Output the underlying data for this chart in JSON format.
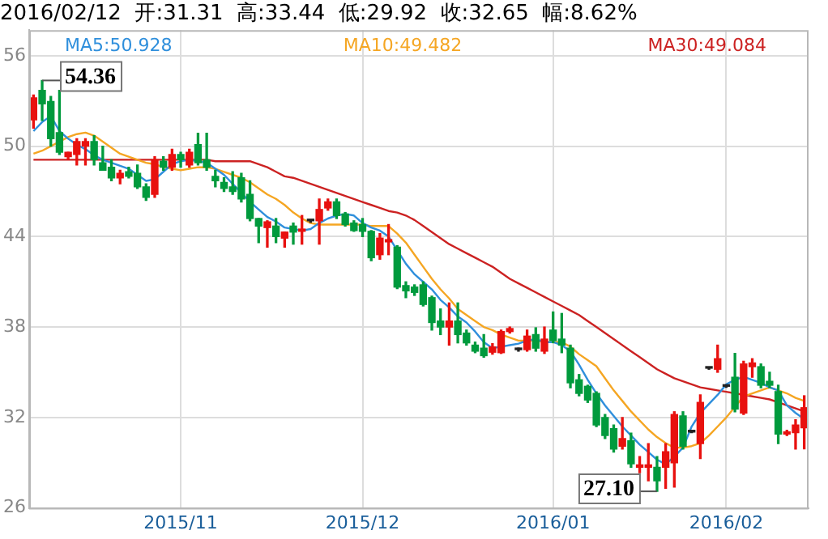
{
  "chart_data": {
    "type": "candlestick",
    "title": "2016/02/12  开:31.31  高:33.44  低:29.92  收:32.65  幅:8.62%",
    "categories": [
      null,
      null,
      null,
      null,
      null,
      null,
      null,
      null,
      null,
      null,
      null,
      null,
      null,
      null,
      null,
      null,
      null,
      "2015/11",
      null,
      null,
      null,
      null,
      null,
      null,
      null,
      null,
      null,
      null,
      null,
      null,
      null,
      null,
      null,
      null,
      null,
      null,
      null,
      null,
      "2015/12",
      null,
      null,
      null,
      null,
      null,
      null,
      null,
      null,
      null,
      null,
      null,
      null,
      null,
      null,
      null,
      null,
      null,
      null,
      null,
      null,
      null,
      "2016/01",
      null,
      null,
      null,
      null,
      null,
      null,
      null,
      null,
      null,
      null,
      null,
      null,
      null,
      null,
      null,
      null,
      null,
      null,
      null,
      "2016/02",
      null,
      null,
      null,
      null,
      null,
      null,
      null,
      null,
      null
    ],
    "ohlc": [
      [
        51.74,
        53.4,
        51.2,
        53.2
      ],
      [
        53.7,
        54.36,
        51.7,
        52.8
      ],
      [
        52.97,
        53.3,
        50.0,
        50.5
      ],
      [
        50.9,
        53.7,
        49.45,
        49.6
      ],
      [
        49.3,
        49.6,
        49.1,
        49.6
      ],
      [
        49.45,
        50.5,
        48.75,
        50.3
      ],
      [
        50.0,
        50.5,
        48.75,
        50.3
      ],
      [
        50.3,
        50.7,
        48.75,
        49.1
      ],
      [
        48.9,
        50.0,
        48.4,
        48.4
      ],
      [
        48.6,
        49.1,
        47.7,
        47.9
      ],
      [
        47.9,
        48.4,
        47.5,
        48.2
      ],
      [
        48.3,
        48.6,
        47.9,
        48.0
      ],
      [
        48.2,
        48.75,
        47.2,
        47.3
      ],
      [
        47.3,
        47.5,
        46.4,
        46.6
      ],
      [
        46.8,
        49.3,
        46.6,
        49.1
      ],
      [
        49.0,
        49.3,
        48.4,
        48.6
      ],
      [
        48.6,
        49.8,
        48.4,
        49.45
      ],
      [
        49.45,
        49.6,
        48.6,
        49.1
      ],
      [
        48.75,
        49.8,
        48.6,
        49.6
      ],
      [
        50.1,
        50.85,
        48.75,
        48.9
      ],
      [
        49.1,
        50.85,
        48.4,
        48.6
      ],
      [
        48.0,
        48.4,
        47.3,
        47.7
      ],
      [
        47.6,
        47.9,
        47.0,
        47.2
      ],
      [
        47.3,
        48.3,
        46.8,
        47.0
      ],
      [
        47.9,
        48.2,
        46.3,
        46.5
      ],
      [
        46.8,
        47.7,
        45.05,
        45.2
      ],
      [
        45.2,
        45.2,
        43.6,
        44.7
      ],
      [
        44.6,
        45.05,
        43.3,
        44.98
      ],
      [
        44.7,
        45.2,
        43.6,
        44.0
      ],
      [
        43.9,
        44.3,
        43.3,
        44.3
      ],
      [
        44.7,
        44.9,
        43.5,
        44.3
      ],
      [
        44.35,
        45.4,
        43.5,
        44.5
      ],
      [
        45.05,
        45.1,
        44.95,
        45.05
      ],
      [
        45.05,
        46.5,
        43.5,
        45.8
      ],
      [
        45.9,
        46.5,
        45.75,
        46.3
      ],
      [
        46.3,
        46.5,
        45.2,
        45.4
      ],
      [
        45.5,
        45.6,
        44.7,
        44.8
      ],
      [
        44.9,
        45.05,
        44.35,
        44.4
      ],
      [
        44.8,
        45.2,
        44.0,
        44.35
      ],
      [
        44.35,
        44.4,
        42.4,
        42.6
      ],
      [
        42.8,
        44.2,
        42.5,
        43.9
      ],
      [
        43.65,
        44.8,
        42.8,
        43.8
      ],
      [
        43.3,
        43.4,
        40.55,
        40.65
      ],
      [
        40.75,
        41.0,
        39.95,
        40.4
      ],
      [
        40.65,
        40.8,
        40.1,
        40.3
      ],
      [
        40.8,
        41.0,
        39.4,
        39.5
      ],
      [
        39.95,
        40.05,
        37.8,
        38.3
      ],
      [
        38.4,
        39.2,
        37.5,
        38.0
      ],
      [
        38.0,
        39.6,
        36.8,
        38.4
      ],
      [
        38.4,
        39.6,
        36.95,
        37.5
      ],
      [
        37.6,
        37.8,
        36.8,
        36.95
      ],
      [
        36.8,
        37.0,
        36.3,
        36.4
      ],
      [
        36.6,
        37.5,
        36.0,
        36.1
      ],
      [
        36.33,
        36.9,
        36.2,
        36.68
      ],
      [
        36.3,
        37.8,
        36.25,
        37.7
      ],
      [
        37.7,
        38.0,
        37.6,
        37.9
      ],
      [
        36.5,
        36.6,
        36.4,
        36.5
      ],
      [
        36.5,
        37.8,
        36.4,
        37.4
      ],
      [
        37.5,
        37.95,
        36.4,
        36.6
      ],
      [
        36.4,
        38.0,
        36.25,
        37.2
      ],
      [
        37.8,
        39.0,
        36.96,
        37.1
      ],
      [
        37.2,
        38.9,
        36.3,
        36.8
      ],
      [
        36.6,
        36.8,
        33.97,
        34.3
      ],
      [
        34.5,
        34.85,
        33.44,
        33.6
      ],
      [
        34.07,
        34.14,
        33.0,
        33.16
      ],
      [
        33.6,
        33.7,
        31.4,
        31.5
      ],
      [
        32.0,
        32.2,
        30.6,
        30.8
      ],
      [
        31.26,
        31.5,
        29.7,
        29.9
      ],
      [
        30.1,
        32.0,
        29.9,
        30.6
      ],
      [
        30.45,
        30.97,
        28.7,
        28.93
      ],
      [
        28.7,
        29.4,
        28.33,
        28.86
      ],
      [
        28.7,
        30.27,
        27.8,
        28.86
      ],
      [
        28.7,
        29.4,
        27.1,
        27.8
      ],
      [
        28.7,
        30.27,
        27.3,
        29.73
      ],
      [
        29.0,
        32.38,
        27.38,
        32.2
      ],
      [
        32.1,
        32.38,
        29.9,
        30.1
      ],
      [
        31.04,
        31.1,
        31.0,
        31.04
      ],
      [
        30.27,
        33.5,
        29.28,
        33.0
      ],
      [
        35.27,
        35.3,
        35.2,
        35.27
      ],
      [
        35.2,
        36.8,
        35.0,
        35.9
      ],
      [
        34.07,
        34.1,
        34.0,
        34.07
      ],
      [
        34.67,
        36.25,
        32.38,
        32.56
      ],
      [
        32.3,
        35.73,
        32.2,
        35.55
      ],
      [
        35.37,
        35.9,
        34.67,
        35.62
      ],
      [
        35.37,
        35.55,
        33.97,
        34.14
      ],
      [
        34.4,
        35.0,
        33.97,
        34.14
      ],
      [
        33.72,
        34.14,
        30.27,
        30.9
      ],
      [
        30.9,
        31.15,
        30.8,
        31.04
      ],
      [
        31.0,
        31.85,
        29.9,
        31.5
      ],
      [
        31.31,
        33.44,
        29.92,
        32.65
      ]
    ],
    "colors": [
      "#e8110f",
      "#009a3d",
      "#009a3d",
      "#009a3d",
      "#e8110f",
      "#e8110f",
      "#e8110f",
      "#009a3d",
      "#009a3d",
      "#009a3d",
      "#e8110f",
      "#009a3d",
      "#009a3d",
      "#009a3d",
      "#e8110f",
      "#009a3d",
      "#e8110f",
      "#009a3d",
      "#e8110f",
      "#009a3d",
      "#009a3d",
      "#009a3d",
      "#009a3d",
      "#009a3d",
      "#009a3d",
      "#009a3d",
      "#009a3d",
      "#e8110f",
      "#009a3d",
      "#e8110f",
      "#009a3d",
      "#e8110f",
      "#222222",
      "#e8110f",
      "#e8110f",
      "#009a3d",
      "#009a3d",
      "#009a3d",
      "#009a3d",
      "#009a3d",
      "#e8110f",
      "#e8110f",
      "#009a3d",
      "#009a3d",
      "#009a3d",
      "#009a3d",
      "#009a3d",
      "#009a3d",
      "#e8110f",
      "#009a3d",
      "#009a3d",
      "#009a3d",
      "#009a3d",
      "#e8110f",
      "#e8110f",
      "#e8110f",
      "#222222",
      "#e8110f",
      "#009a3d",
      "#e8110f",
      "#009a3d",
      "#009a3d",
      "#009a3d",
      "#009a3d",
      "#009a3d",
      "#009a3d",
      "#009a3d",
      "#009a3d",
      "#e8110f",
      "#009a3d",
      "#e8110f",
      "#e8110f",
      "#009a3d",
      "#e8110f",
      "#e8110f",
      "#009a3d",
      "#222222",
      "#e8110f",
      "#222222",
      "#e8110f",
      "#222222",
      "#009a3d",
      "#e8110f",
      "#e8110f",
      "#009a3d",
      "#009a3d",
      "#009a3d",
      "#e8110f",
      "#e8110f",
      "#e8110f"
    ],
    "series": [
      {
        "name": "MA5:50.928",
        "type": "line",
        "color": "#2f8fdc",
        "values": [
          51.0,
          51.6,
          52.0,
          51.0,
          50.5,
          50.1,
          49.8,
          49.4,
          49.1,
          48.9,
          48.7,
          48.5,
          48.1,
          47.7,
          47.8,
          48.3,
          48.8,
          49.0,
          49.1,
          49.0,
          48.9,
          48.5,
          48.1,
          47.5,
          46.9,
          46.3,
          45.8,
          45.3,
          45.0,
          44.6,
          44.5,
          44.4,
          44.5,
          44.9,
          45.2,
          45.4,
          45.5,
          45.4,
          44.9,
          44.6,
          44.4,
          44.0,
          43.1,
          42.2,
          41.5,
          41.0,
          40.5,
          39.8,
          39.3,
          38.7,
          38.3,
          37.7,
          37.0,
          36.6,
          36.7,
          36.8,
          36.9,
          37.1,
          37.2,
          37.0,
          37.0,
          36.8,
          36.4,
          35.5,
          34.5,
          33.6,
          32.8,
          32.1,
          31.4,
          30.8,
          30.2,
          29.7,
          29.2,
          28.9,
          29.4,
          30.0,
          31.4,
          32.3,
          32.9,
          33.5,
          34.2,
          34.5,
          34.7,
          34.5,
          34.3,
          34.0,
          33.8,
          32.8,
          32.3,
          31.9
        ]
      },
      {
        "name": "MA10:49.482",
        "type": "line",
        "color": "#f5a623",
        "values": [
          49.5,
          49.7,
          50.0,
          50.3,
          50.6,
          50.8,
          50.9,
          50.7,
          50.3,
          49.9,
          49.5,
          49.3,
          49.1,
          48.9,
          48.8,
          48.6,
          48.5,
          48.4,
          48.5,
          48.6,
          48.6,
          48.5,
          48.3,
          48.1,
          47.9,
          47.6,
          47.2,
          46.8,
          46.5,
          46.1,
          45.6,
          45.2,
          44.9,
          44.8,
          44.8,
          44.8,
          44.8,
          44.8,
          44.8,
          44.7,
          44.7,
          44.7,
          44.2,
          43.6,
          42.8,
          42.0,
          41.2,
          40.5,
          39.9,
          39.2,
          38.8,
          38.4,
          38.0,
          37.8,
          37.5,
          37.3,
          37.1,
          37.1,
          37.1,
          37.0,
          37.0,
          37.0,
          36.7,
          36.2,
          35.8,
          35.4,
          34.6,
          33.8,
          33.1,
          32.4,
          31.8,
          31.2,
          30.7,
          30.3,
          30.0,
          30.0,
          30.1,
          30.3,
          30.8,
          31.4,
          32.0,
          32.7,
          33.4,
          33.6,
          33.8,
          34.0,
          33.8,
          33.6,
          33.3,
          33.1
        ]
      },
      {
        "name": "MA30:49.084",
        "type": "line",
        "color": "#cc2222",
        "values": [
          49.1,
          49.1,
          49.1,
          49.1,
          49.1,
          49.1,
          49.1,
          49.1,
          49.1,
          49.1,
          49.1,
          49.1,
          49.1,
          49.1,
          49.1,
          49.1,
          49.1,
          49.1,
          49.1,
          49.1,
          49.1,
          49.0,
          49.0,
          49.0,
          49.0,
          49.0,
          48.8,
          48.6,
          48.3,
          48.0,
          47.9,
          47.7,
          47.5,
          47.3,
          47.1,
          46.9,
          46.7,
          46.5,
          46.3,
          46.1,
          45.9,
          45.7,
          45.6,
          45.4,
          45.1,
          44.7,
          44.3,
          43.9,
          43.5,
          43.2,
          42.9,
          42.6,
          42.3,
          42.0,
          41.6,
          41.2,
          40.9,
          40.6,
          40.3,
          40.0,
          39.7,
          39.4,
          39.1,
          38.8,
          38.4,
          38.0,
          37.6,
          37.2,
          36.8,
          36.4,
          36.0,
          35.6,
          35.2,
          34.9,
          34.6,
          34.4,
          34.2,
          34.0,
          33.9,
          33.8,
          33.7,
          33.6,
          33.5,
          33.4,
          33.3,
          33.2,
          33.0,
          32.8,
          32.6,
          32.4
        ]
      }
    ],
    "ylim": [
      26,
      57.7
    ],
    "yticks": [
      26,
      32,
      38,
      44,
      50,
      56
    ],
    "grid": true,
    "legend": "top",
    "annotations": [
      "54.36",
      "27.10"
    ]
  }
}
